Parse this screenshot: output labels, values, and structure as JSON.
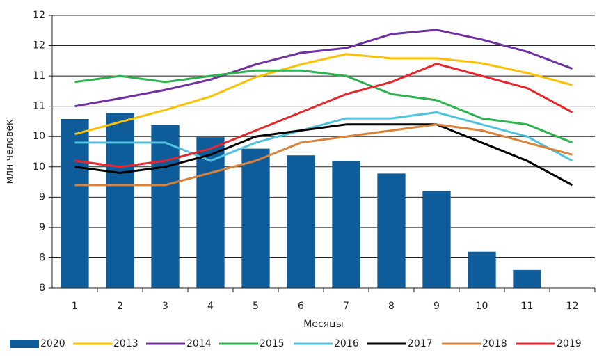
{
  "chart_data": {
    "type": "bar",
    "y_label": "млн человек",
    "x_label": "Месяцы",
    "categories": [
      "1",
      "2",
      "3",
      "4",
      "5",
      "6",
      "7",
      "8",
      "9",
      "10",
      "11",
      "12"
    ],
    "ylim": [
      7.5,
      12
    ],
    "yticks": [
      {
        "value": 7.5,
        "label": "8"
      },
      {
        "value": 8,
        "label": "8"
      },
      {
        "value": 8.5,
        "label": "9"
      },
      {
        "value": 9,
        "label": "9"
      },
      {
        "value": 9.5,
        "label": "10"
      },
      {
        "value": 10,
        "label": "10"
      },
      {
        "value": 10.5,
        "label": "11"
      },
      {
        "value": 11,
        "label": "11"
      },
      {
        "value": 11.5,
        "label": "12"
      },
      {
        "value": 12,
        "label": "12"
      }
    ],
    "grid": true,
    "legend": "bottom",
    "series": [
      {
        "name": "2020",
        "type": "bar",
        "color": "#0f5c9b",
        "values": [
          10.29,
          10.39,
          10.19,
          9.99,
          9.8,
          9.69,
          9.59,
          9.39,
          9.1,
          8.1,
          7.8,
          null
        ]
      },
      {
        "name": "2013",
        "type": "line",
        "color": "#ffc000",
        "values": [
          10.04,
          10.24,
          10.44,
          10.66,
          10.98,
          11.19,
          11.36,
          11.29,
          11.29,
          11.21,
          11.05,
          10.85
        ]
      },
      {
        "name": "2014",
        "type": "line",
        "color": "#7030a0",
        "values": [
          10.5,
          10.63,
          10.77,
          10.94,
          11.19,
          11.38,
          11.46,
          11.69,
          11.76,
          11.6,
          11.4,
          11.12
        ]
      },
      {
        "name": "2015",
        "type": "line",
        "color": "#2eb24f",
        "values": [
          10.9,
          11.0,
          10.9,
          11.0,
          11.09,
          11.09,
          11.0,
          10.7,
          10.6,
          10.3,
          10.2,
          9.9
        ]
      },
      {
        "name": "2016",
        "type": "line",
        "color": "#4fc3dd",
        "values": [
          9.9,
          9.9,
          9.9,
          9.6,
          9.9,
          10.1,
          10.3,
          10.3,
          10.4,
          10.2,
          10.0,
          9.6
        ]
      },
      {
        "name": "2017",
        "type": "line",
        "color": "#000000",
        "values": [
          9.5,
          9.4,
          9.5,
          9.7,
          10.0,
          10.1,
          10.2,
          10.2,
          10.2,
          9.9,
          9.6,
          9.2
        ]
      },
      {
        "name": "2018",
        "type": "line",
        "color": "#d9823b",
        "values": [
          9.2,
          9.2,
          9.2,
          9.4,
          9.6,
          9.9,
          10.0,
          10.1,
          10.2,
          10.1,
          9.9,
          9.7
        ]
      },
      {
        "name": "2019",
        "type": "line",
        "color": "#e8262b",
        "values": [
          9.6,
          9.5,
          9.6,
          9.8,
          10.1,
          10.4,
          10.7,
          10.9,
          11.2,
          11.0,
          10.8,
          10.4
        ]
      }
    ]
  }
}
